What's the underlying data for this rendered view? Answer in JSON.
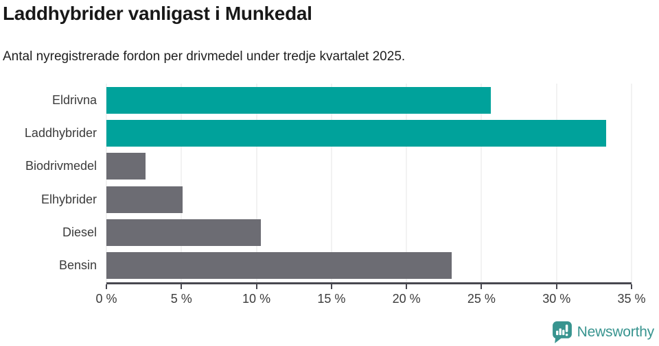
{
  "title": "Laddhybrider vanligast i Munkedal",
  "subtitle": "Antal nyregistrerade fordon per drivmedel under tredje kvartalet 2025.",
  "chart_data": {
    "type": "bar",
    "orientation": "horizontal",
    "title": "Laddhybrider vanligast i Munkedal",
    "subtitle": "Antal nyregistrerade fordon per drivmedel under tredje kvartalet 2025.",
    "categories": [
      "Eldrivna",
      "Laddhybrider",
      "Biodrivmedel",
      "Elhybrider",
      "Diesel",
      "Bensin"
    ],
    "values": [
      25.6,
      33.3,
      2.6,
      5.1,
      10.3,
      23.0
    ],
    "unit": "%",
    "xlim": [
      0,
      35
    ],
    "x_tick_values": [
      0,
      5,
      10,
      15,
      20,
      25,
      30,
      35
    ],
    "x_ticks": [
      "0 %",
      "5 %",
      "10 %",
      "15 %",
      "20 %",
      "25 %",
      "30 %",
      "35 %"
    ],
    "grid": true,
    "legend": "none",
    "highlighted_categories": [
      "Eldrivna",
      "Laddhybrider"
    ],
    "bar_colors": [
      "#00a29b",
      "#00a29b",
      "#6c6c73",
      "#6c6c73",
      "#6c6c73",
      "#6c6c73"
    ]
  },
  "colors": {
    "highlight": "#00a29b",
    "default_bar": "#6c6c73",
    "gridline": "#e4e4e4",
    "axis": "#47474f",
    "text": "#3b3b3b",
    "logo": "#38948f"
  },
  "branding": {
    "logo_text": "Newsworthy",
    "logo_icon": "speech-bubble-bar-chart-icon",
    "logo_color": "#38948f"
  }
}
